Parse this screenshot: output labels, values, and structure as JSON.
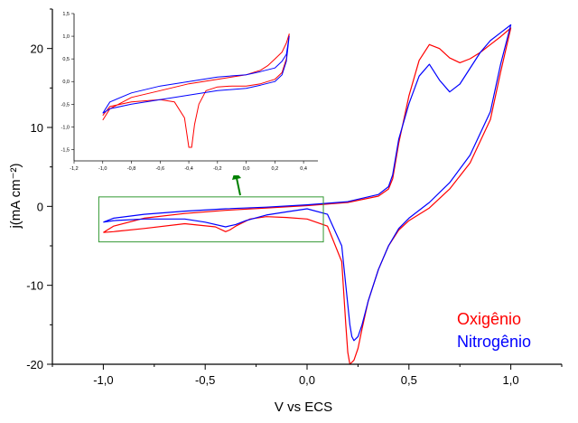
{
  "chart_data": [
    {
      "type": "line",
      "title": "",
      "xlabel": "V vs ECS",
      "ylabel": "j(mA cm⁻²)",
      "xlim": [
        -1.25,
        1.25
      ],
      "ylim": [
        -20,
        25
      ],
      "x_ticks": [
        -1.0,
        -0.5,
        0.0,
        0.5,
        1.0
      ],
      "x_tick_labels": [
        "-1,0",
        "-0,5",
        "0,0",
        "0,5",
        "1,0"
      ],
      "y_ticks": [
        -20,
        -10,
        0,
        10,
        20
      ],
      "y_tick_labels": [
        "-20",
        "-10",
        "0",
        "10",
        "20"
      ],
      "legend_position": "bottom-right",
      "grid": false,
      "series": [
        {
          "name": "Oxigênio",
          "color": "#ff0000",
          "x": [
            -1.0,
            -0.95,
            -0.8,
            -0.6,
            -0.4,
            -0.2,
            0.0,
            0.2,
            0.35,
            0.4,
            0.42,
            0.45,
            0.5,
            0.55,
            0.6,
            0.65,
            0.7,
            0.75,
            0.8,
            0.85,
            0.9,
            0.95,
            1.0,
            0.95,
            0.9,
            0.8,
            0.7,
            0.6,
            0.5,
            0.45,
            0.4,
            0.35,
            0.3,
            0.27,
            0.25,
            0.23,
            0.21,
            0.2,
            0.19,
            0.17,
            0.1,
            0.0,
            -0.1,
            -0.2,
            -0.28,
            -0.35,
            -0.38,
            -0.4,
            -0.45,
            -0.6,
            -0.8,
            -0.95,
            -1.0
          ],
          "y": [
            -3.3,
            -2.5,
            -1.5,
            -0.9,
            -0.5,
            -0.2,
            0.1,
            0.5,
            1.3,
            2.2,
            3.5,
            8.0,
            14.0,
            18.5,
            20.5,
            20.0,
            18.8,
            18.2,
            18.7,
            19.5,
            20.5,
            21.5,
            22.6,
            17.0,
            11.0,
            5.5,
            2.2,
            -0.2,
            -1.8,
            -3.0,
            -5.0,
            -8.0,
            -12.0,
            -15.5,
            -18.0,
            -19.5,
            -20.0,
            -18.5,
            -15.0,
            -7.0,
            -2.5,
            -1.6,
            -1.4,
            -1.3,
            -1.6,
            -2.5,
            -3.0,
            -3.2,
            -2.6,
            -2.2,
            -2.8,
            -3.2,
            -3.3
          ]
        },
        {
          "name": "Nitrogênio",
          "color": "#0000ff",
          "x": [
            -1.0,
            -0.95,
            -0.8,
            -0.6,
            -0.4,
            -0.2,
            0.0,
            0.2,
            0.35,
            0.4,
            0.42,
            0.45,
            0.5,
            0.55,
            0.6,
            0.65,
            0.7,
            0.75,
            0.8,
            0.85,
            0.9,
            0.95,
            1.0,
            0.95,
            0.9,
            0.8,
            0.7,
            0.6,
            0.5,
            0.45,
            0.4,
            0.35,
            0.3,
            0.27,
            0.25,
            0.23,
            0.22,
            0.21,
            0.19,
            0.17,
            0.1,
            0.0,
            -0.1,
            -0.2,
            -0.3,
            -0.35,
            -0.4,
            -0.5,
            -0.6,
            -0.8,
            -0.95,
            -1.0
          ],
          "y": [
            -2.0,
            -1.5,
            -1.0,
            -0.6,
            -0.3,
            -0.1,
            0.2,
            0.6,
            1.5,
            2.5,
            4.0,
            8.5,
            13.0,
            16.5,
            18.0,
            16.0,
            14.5,
            15.5,
            17.5,
            19.5,
            21.0,
            22.0,
            23.0,
            18.0,
            12.0,
            6.5,
            3.0,
            0.5,
            -1.5,
            -2.8,
            -5.0,
            -8.0,
            -12.0,
            -15.0,
            -16.5,
            -17.0,
            -16.5,
            -15.0,
            -10.0,
            -5.0,
            -1.0,
            -0.3,
            -0.7,
            -1.1,
            -1.8,
            -2.3,
            -2.6,
            -2.0,
            -1.6,
            -1.6,
            -1.8,
            -2.0
          ]
        }
      ],
      "annotations": [
        {
          "type": "highlight-rectangle",
          "color": "#339933",
          "x_range": [
            -1.0,
            0.08
          ],
          "y_range": [
            -4.5,
            1.2
          ]
        },
        {
          "type": "arrow",
          "color": "#008000",
          "from": "highlight-rectangle",
          "to": "inset"
        }
      ]
    },
    {
      "type": "line",
      "title": "",
      "xlabel": "",
      "ylabel": "",
      "xlim": [
        -1.2,
        0.5
      ],
      "ylim": [
        -1.75,
        1.5
      ],
      "x_ticks": [
        -1.2,
        -1.0,
        -0.8,
        -0.6,
        -0.4,
        -0.2,
        0.0,
        0.2,
        0.4
      ],
      "x_tick_labels": [
        "-1,2",
        "-1,0",
        "-0,8",
        "-0,6",
        "-0,4",
        "-0,2",
        "0,0",
        "0,2",
        "0,4"
      ],
      "y_ticks": [
        -1.5,
        -1.0,
        -0.5,
        0.0,
        0.5,
        1.0,
        1.5
      ],
      "y_tick_labels": [
        "-1,5",
        "-1,0",
        "-0,5",
        "0,0",
        "0,5",
        "1,0",
        "1,5"
      ],
      "grid": false,
      "series": [
        {
          "name": "",
          "color": "#ff0000",
          "x": [
            -1.0,
            -0.95,
            -0.8,
            -0.6,
            -0.4,
            -0.2,
            0.0,
            0.1,
            0.15,
            0.2,
            0.25,
            0.28,
            0.3,
            0.28,
            0.25,
            0.2,
            0.1,
            0.0,
            -0.1,
            -0.2,
            -0.28,
            -0.33,
            -0.36,
            -0.38,
            -0.4,
            -0.43,
            -0.5,
            -0.6,
            -0.8,
            -0.95,
            -1.0
          ],
          "y": [
            -0.85,
            -0.6,
            -0.35,
            -0.2,
            -0.05,
            0.05,
            0.15,
            0.25,
            0.35,
            0.5,
            0.65,
            0.85,
            1.05,
            0.5,
            0.2,
            0.05,
            -0.05,
            -0.1,
            -0.1,
            -0.12,
            -0.2,
            -0.5,
            -0.95,
            -1.45,
            -1.45,
            -0.8,
            -0.45,
            -0.4,
            -0.45,
            -0.55,
            -0.75
          ]
        },
        {
          "name": "",
          "color": "#0000ff",
          "x": [
            -1.0,
            -0.95,
            -0.8,
            -0.6,
            -0.4,
            -0.2,
            0.0,
            0.1,
            0.2,
            0.25,
            0.28,
            0.3,
            0.28,
            0.25,
            0.2,
            0.1,
            0.0,
            -0.2,
            -0.4,
            -0.6,
            -0.8,
            -0.95,
            -1.0
          ],
          "y": [
            -0.7,
            -0.45,
            -0.25,
            -0.1,
            0.0,
            0.1,
            0.15,
            0.22,
            0.3,
            0.45,
            0.6,
            1.0,
            0.45,
            0.15,
            0.0,
            -0.08,
            -0.15,
            -0.2,
            -0.3,
            -0.4,
            -0.5,
            -0.6,
            -0.7
          ]
        }
      ]
    }
  ]
}
